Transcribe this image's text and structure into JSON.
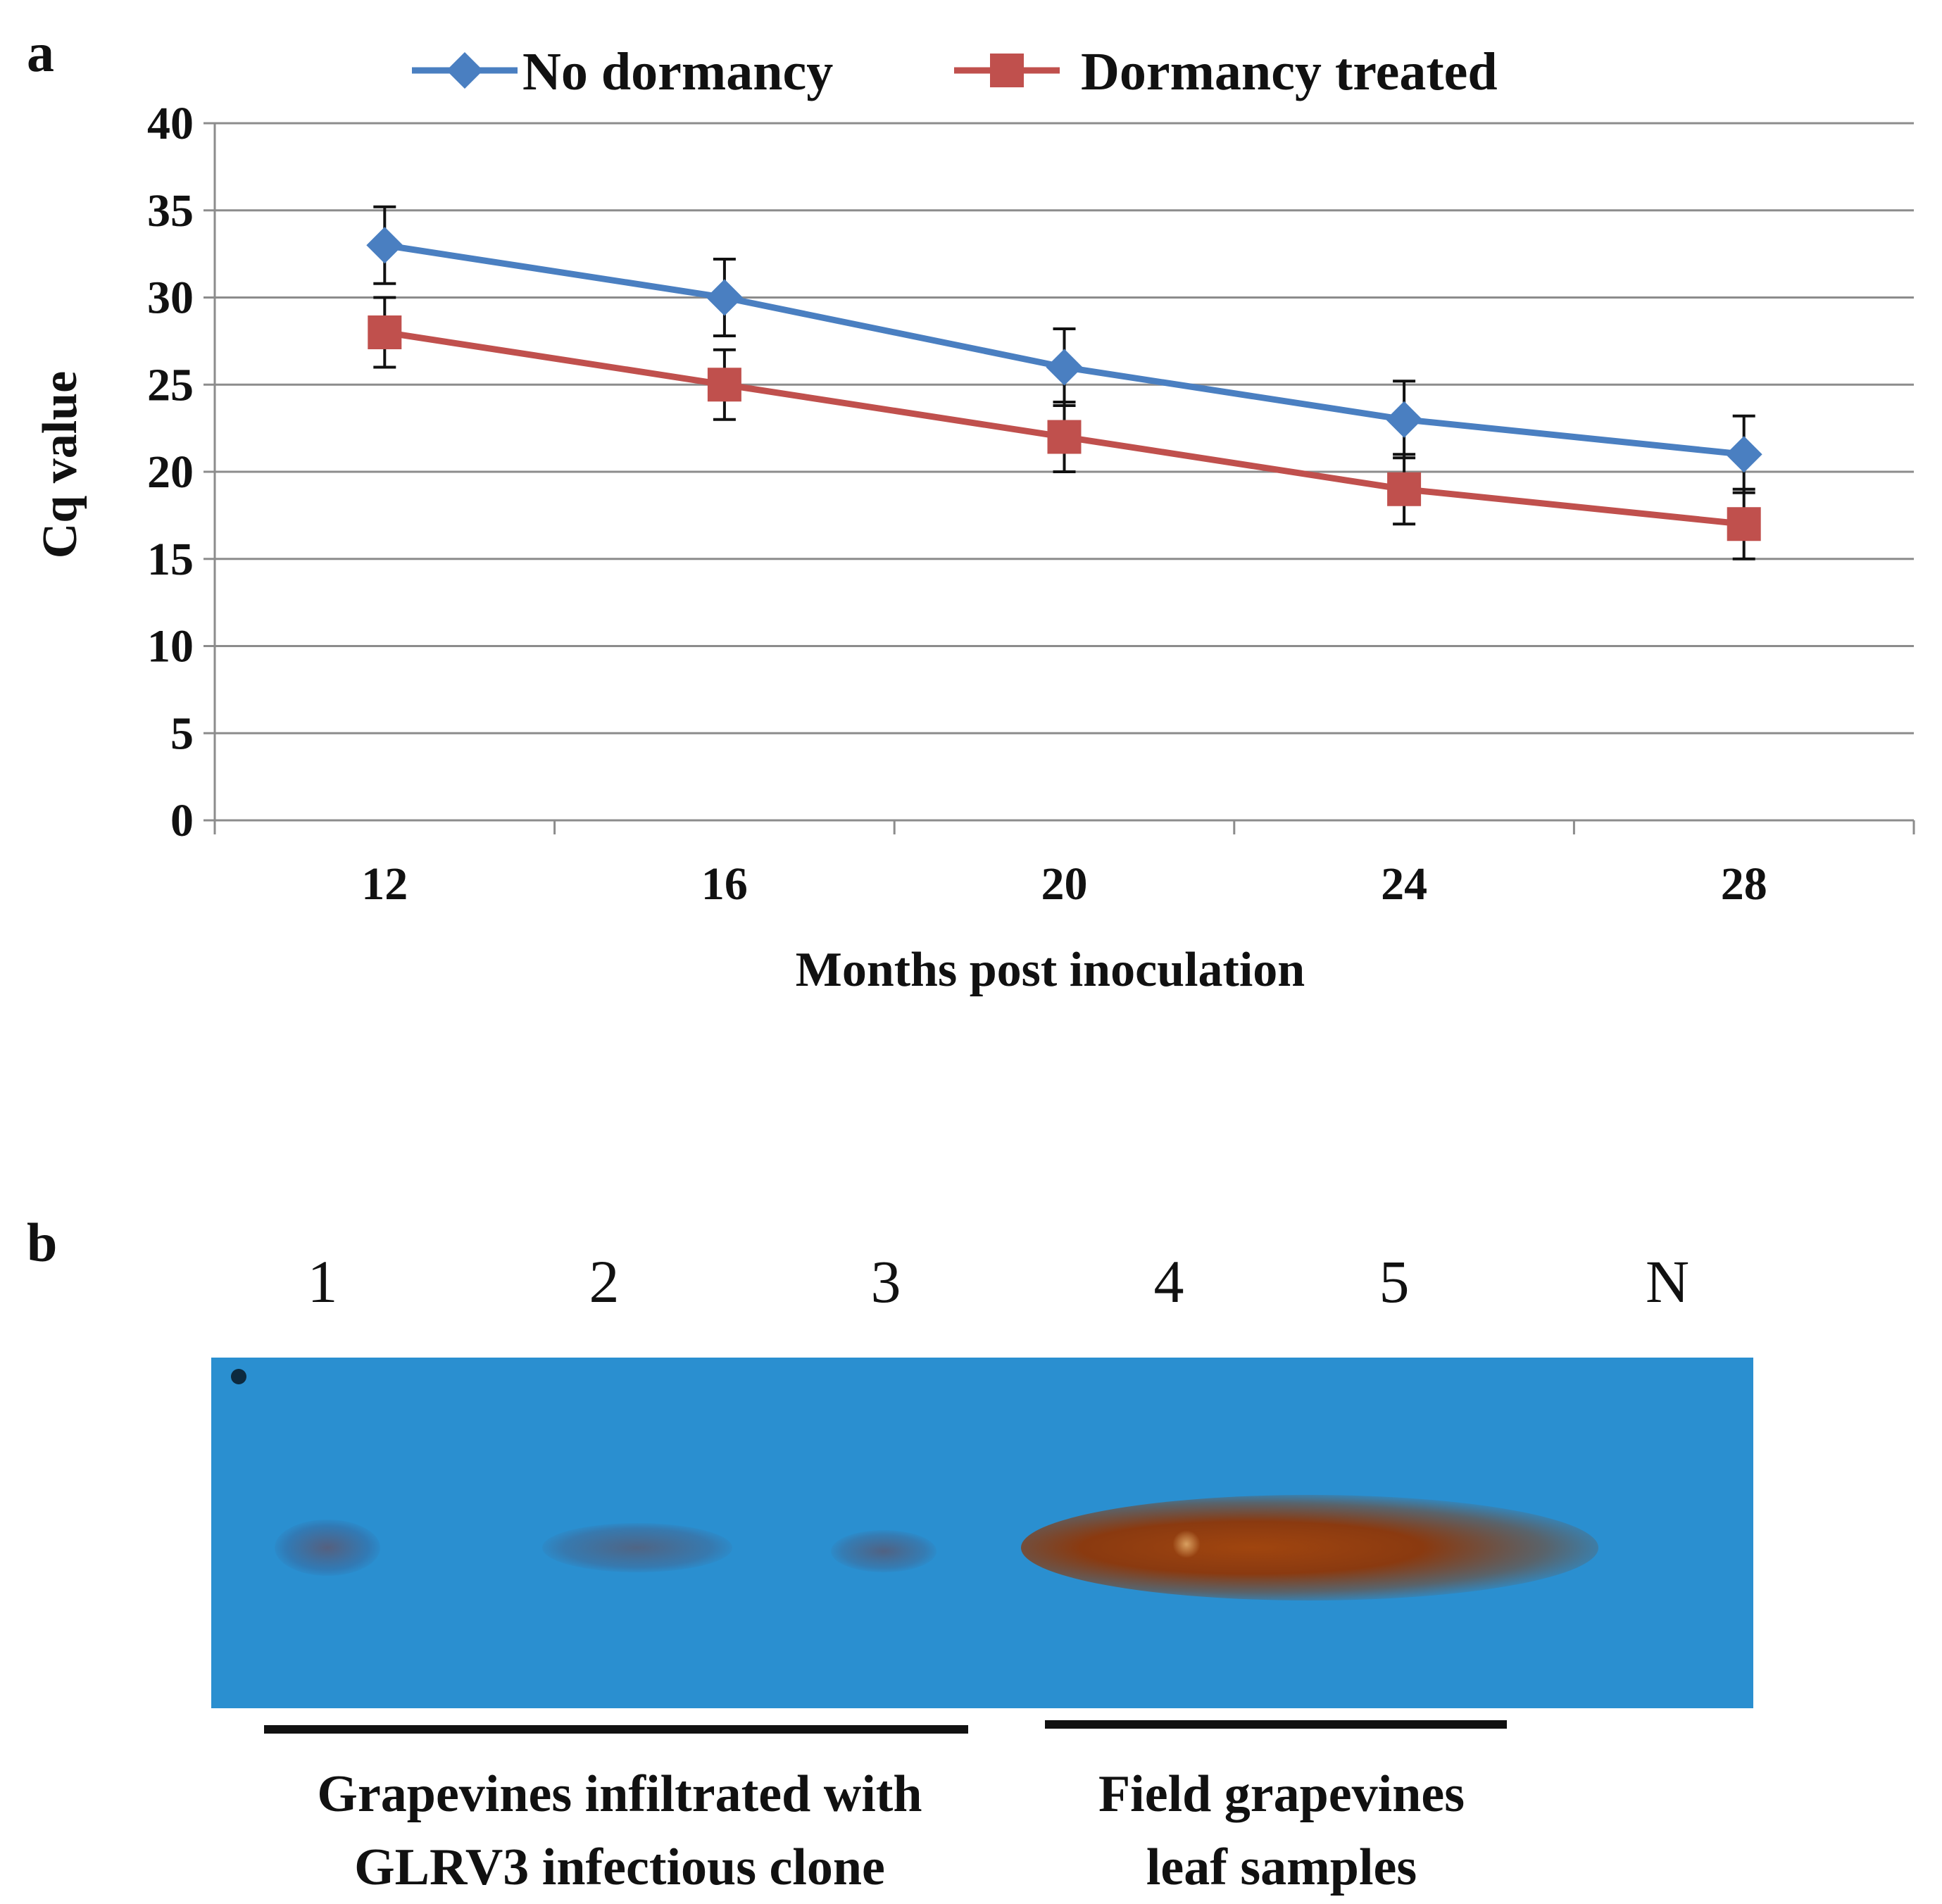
{
  "panel_a": {
    "label": "a"
  },
  "panel_b": {
    "label": "b",
    "lanes": [
      "1",
      "2",
      "3",
      "4",
      "5",
      "N"
    ],
    "groups": [
      {
        "line1": "Grapevines infiltrated with",
        "line2": "GLRV3 infectious clone"
      },
      {
        "line1": "Field grapevines",
        "line2": "leaf samples"
      }
    ]
  },
  "colors": {
    "no_dormancy": "#4a7fc1",
    "dormancy_treated": "#c0504d",
    "blot_background": "#2a8fd0",
    "band_faint": "#5a6a8a",
    "band_strong": "#8a3a10"
  },
  "chart_data": {
    "type": "line",
    "x": [
      12,
      16,
      20,
      24,
      28
    ],
    "categories": [
      "12",
      "16",
      "20",
      "24",
      "28"
    ],
    "xlabel": "Months post inoculation",
    "ylabel": "Cq value",
    "ylim": [
      0,
      40
    ],
    "yticks": [
      "0",
      "5",
      "10",
      "15",
      "20",
      "25",
      "30",
      "35",
      "40"
    ],
    "grid": true,
    "legend_position": "top",
    "series": [
      {
        "name": "No dormancy",
        "marker": "diamond",
        "values": [
          33,
          30,
          26,
          23,
          21
        ],
        "error": [
          2.2,
          2.2,
          2.2,
          2.2,
          2.2
        ]
      },
      {
        "name": "Dormancy treated",
        "marker": "square",
        "values": [
          28,
          25,
          22,
          19,
          17
        ],
        "error": [
          2,
          2,
          2,
          2,
          2
        ]
      }
    ]
  }
}
